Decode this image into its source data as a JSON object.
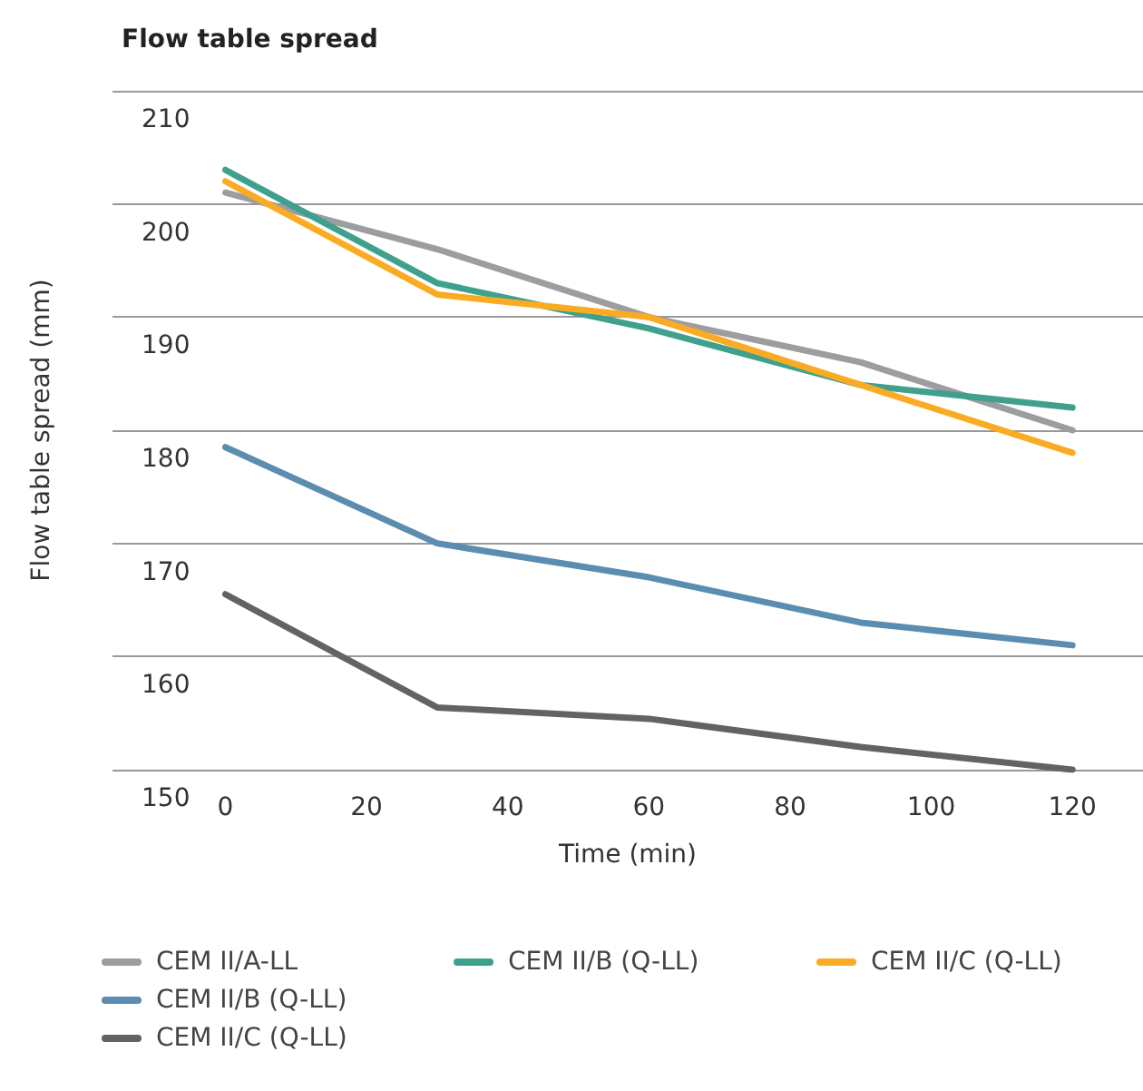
{
  "chart_data": {
    "type": "line",
    "title": "Flow table spread",
    "xlabel": "Time (min)",
    "ylabel": "Flow table spread (mm)",
    "x": [
      0,
      30,
      60,
      90,
      120
    ],
    "series": [
      {
        "name": "CEM II/A-LL",
        "color": "#9d9c9e",
        "values": [
          201,
          196,
          190,
          186,
          180
        ]
      },
      {
        "name": "CEM II/B (Q-LL)",
        "color": "#5b8db0",
        "values": [
          178.5,
          170,
          167,
          163,
          161
        ]
      },
      {
        "name": "CEM II/C (Q-LL)",
        "color": "#636266",
        "values": [
          165.5,
          155.5,
          154.5,
          152,
          150
        ]
      },
      {
        "name": "CEM II/B (Q-LL)",
        "color": "#3fa08e",
        "values": [
          203,
          193,
          189,
          184,
          182
        ]
      },
      {
        "name": "CEM II/C (Q-LL)",
        "color": "#f9ac23",
        "values": [
          202,
          192,
          190,
          184,
          178
        ]
      }
    ],
    "xlim": [
      -16,
      130
    ],
    "xticks": [
      0,
      20,
      40,
      60,
      80,
      100,
      120
    ],
    "ylim": [
      150,
      210
    ],
    "yticks": [
      150,
      160,
      170,
      180,
      190,
      200,
      210
    ],
    "grid": "y",
    "legend": "bottom",
    "marker": "none",
    "line_style": "solid"
  }
}
